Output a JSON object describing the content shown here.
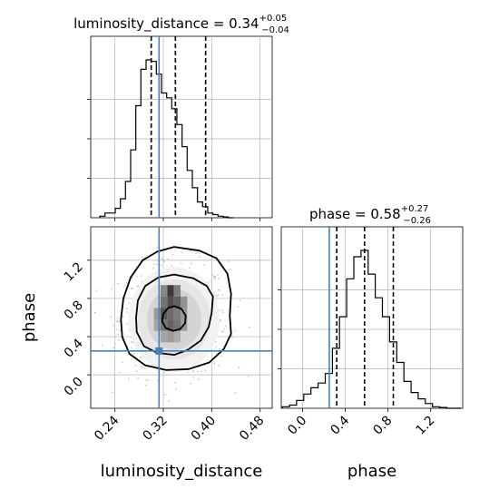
{
  "chart_data": {
    "type": "corner",
    "params": [
      "luminosity_distance",
      "phase"
    ],
    "truth": {
      "luminosity_distance": 0.313,
      "phase": 0.25
    },
    "summaries": [
      {
        "param": "luminosity_distance",
        "title_prefix": "luminosity_distance = 0.34",
        "plus": "+0.05",
        "minus": "−0.04",
        "quantiles": [
          0.3,
          0.34,
          0.39
        ]
      },
      {
        "param": "phase",
        "title_prefix": "phase = 0.58",
        "plus": "+0.27",
        "minus": "−0.26",
        "quantiles": [
          0.32,
          0.58,
          0.85
        ]
      }
    ],
    "hist_luminosity_distance": {
      "xlim": [
        0.2,
        0.5
      ],
      "edges_start": 0.215,
      "bin_width": 0.0085,
      "counts": [
        0.01,
        0.03,
        0.03,
        0.06,
        0.12,
        0.23,
        0.43,
        0.71,
        0.94,
        1.0,
        0.99,
        0.91,
        0.79,
        0.76,
        0.69,
        0.59,
        0.45,
        0.3,
        0.19,
        0.1,
        0.07,
        0.03,
        0.02,
        0.01,
        0.005,
        0.0
      ]
    },
    "hist_phase": {
      "xlim": [
        -0.2,
        1.5
      ],
      "edges_start": -0.19,
      "bin_width": 0.067,
      "counts": [
        0.01,
        0.02,
        0.05,
        0.09,
        0.13,
        0.16,
        0.22,
        0.38,
        0.58,
        0.82,
        0.96,
        1.0,
        0.85,
        0.7,
        0.58,
        0.42,
        0.29,
        0.17,
        0.1,
        0.06,
        0.03,
        0.01,
        0.005,
        0.0,
        0.0
      ]
    },
    "scatter_2d": {
      "xlim": [
        0.2,
        0.5
      ],
      "ylim": [
        -0.35,
        1.55
      ],
      "center": [
        0.338,
        0.58
      ],
      "contours": [
        [
          [
            0.338,
            1.05
          ],
          [
            0.37,
            1.01
          ],
          [
            0.392,
            0.93
          ],
          [
            0.402,
            0.82
          ],
          [
            0.4,
            0.65
          ],
          [
            0.395,
            0.5
          ],
          [
            0.382,
            0.36
          ],
          [
            0.36,
            0.26
          ],
          [
            0.338,
            0.21
          ],
          [
            0.31,
            0.23
          ],
          [
            0.288,
            0.3
          ],
          [
            0.276,
            0.45
          ],
          [
            0.275,
            0.6
          ],
          [
            0.278,
            0.78
          ],
          [
            0.29,
            0.93
          ],
          [
            0.312,
            1.02
          ]
        ],
        [
          [
            0.338,
            1.34
          ],
          [
            0.38,
            1.3
          ],
          [
            0.408,
            1.22
          ],
          [
            0.426,
            1.06
          ],
          [
            0.432,
            0.85
          ],
          [
            0.43,
            0.62
          ],
          [
            0.432,
            0.43
          ],
          [
            0.42,
            0.27
          ],
          [
            0.396,
            0.13
          ],
          [
            0.362,
            0.06
          ],
          [
            0.325,
            0.05
          ],
          [
            0.29,
            0.1
          ],
          [
            0.264,
            0.22
          ],
          [
            0.252,
            0.4
          ],
          [
            0.25,
            0.58
          ],
          [
            0.254,
            0.8
          ],
          [
            0.266,
            1.02
          ],
          [
            0.286,
            1.2
          ],
          [
            0.31,
            1.29
          ]
        ],
        [
          [
            0.338,
            0.72
          ],
          [
            0.35,
            0.69
          ],
          [
            0.357,
            0.62
          ],
          [
            0.356,
            0.54
          ],
          [
            0.348,
            0.48
          ],
          [
            0.336,
            0.46
          ],
          [
            0.324,
            0.49
          ],
          [
            0.318,
            0.56
          ],
          [
            0.32,
            0.64
          ],
          [
            0.328,
            0.7
          ]
        ]
      ],
      "density_cells": [
        [
          0.332,
          0.88,
          0.9
        ],
        [
          0.343,
          0.88,
          0.55
        ],
        [
          0.321,
          0.88,
          0.5
        ],
        [
          0.332,
          0.76,
          0.8
        ],
        [
          0.343,
          0.76,
          0.7
        ],
        [
          0.321,
          0.76,
          0.6
        ],
        [
          0.354,
          0.76,
          0.45
        ],
        [
          0.321,
          0.64,
          0.75
        ],
        [
          0.332,
          0.64,
          0.65
        ],
        [
          0.343,
          0.64,
          0.55
        ],
        [
          0.354,
          0.64,
          0.4
        ],
        [
          0.31,
          0.64,
          0.4
        ],
        [
          0.321,
          0.52,
          0.6
        ],
        [
          0.332,
          0.52,
          0.7
        ],
        [
          0.343,
          0.52,
          0.6
        ],
        [
          0.354,
          0.52,
          0.4
        ],
        [
          0.31,
          0.52,
          0.35
        ],
        [
          0.321,
          0.4,
          0.35
        ],
        [
          0.332,
          0.4,
          0.4
        ],
        [
          0.343,
          0.4,
          0.3
        ]
      ]
    },
    "axis_labels": {
      "x1": "luminosity_distance",
      "x2": "phase",
      "y2": "phase"
    },
    "ticks_luminosity_distance": [
      "0.24",
      "0.32",
      "0.40",
      "0.48"
    ],
    "ticks_luminosity_distance_values": [
      0.24,
      0.32,
      0.4,
      0.48
    ],
    "ticks_phase": [
      "0.0",
      "0.4",
      "0.8",
      "1.2"
    ],
    "ticks_phase_values": [
      0.0,
      0.4,
      0.8,
      1.2
    ],
    "colors": {
      "truth": "#4682b4",
      "hist": "#000000",
      "grid": "#b0b0b0",
      "points": "#bdbdbd"
    }
  }
}
